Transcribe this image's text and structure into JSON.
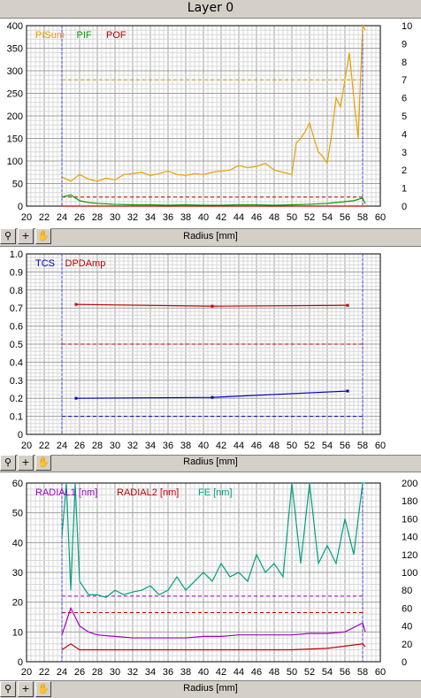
{
  "title": "Layer 0",
  "toolbar_icons": [
    "zoom-icon",
    "crosshair-icon",
    "pan-hand-icon"
  ],
  "chart_data": [
    {
      "type": "line",
      "xlabel": "Radius [mm]",
      "xlim": [
        20,
        60
      ],
      "xticks": [
        "20",
        "22",
        "24",
        "26",
        "28",
        "30",
        "32",
        "34",
        "36",
        "38",
        "40",
        "42",
        "44",
        "46",
        "48",
        "50",
        "52",
        "54",
        "56",
        "58",
        "60"
      ],
      "ylim_left": [
        0,
        400
      ],
      "yticks_left": [
        "0",
        "50",
        "100",
        "150",
        "200",
        "250",
        "300",
        "350",
        "400"
      ],
      "ylim_right": [
        0,
        10
      ],
      "yticks_right": [
        "0",
        "1",
        "2",
        "3",
        "4",
        "5",
        "6",
        "7",
        "8",
        "9",
        "10"
      ],
      "legend": [
        {
          "name": "PISum",
          "color": "#e8a000"
        },
        {
          "name": "PIF",
          "color": "#00a000"
        },
        {
          "name": "POF",
          "color": "#c00000"
        }
      ],
      "markers_x": [
        24,
        58
      ],
      "thresholds": [
        {
          "y": 280,
          "color": "#d0a000"
        },
        {
          "y": 20,
          "color": "#c00000"
        }
      ],
      "series": [
        {
          "name": "PISum",
          "axis": "left",
          "color": "#e8a000",
          "x": [
            24,
            25,
            26,
            27,
            28,
            29,
            30,
            31,
            32,
            33,
            34,
            35,
            36,
            37,
            38,
            39,
            40,
            41,
            42,
            43,
            44,
            45,
            46,
            47,
            48,
            49,
            50,
            50.5,
            51,
            51.5,
            52,
            52.5,
            53,
            53.5,
            54,
            54.5,
            55,
            55.5,
            56,
            56.5,
            57,
            57.5,
            58,
            58.3
          ],
          "y": [
            65,
            55,
            70,
            60,
            55,
            62,
            58,
            70,
            72,
            75,
            68,
            72,
            78,
            70,
            68,
            72,
            70,
            75,
            78,
            80,
            90,
            85,
            88,
            95,
            80,
            75,
            70,
            140,
            150,
            165,
            185,
            150,
            120,
            110,
            95,
            160,
            240,
            220,
            280,
            340,
            240,
            150,
            400,
            390
          ]
        },
        {
          "name": "PIF",
          "axis": "left",
          "color": "#00a000",
          "x": [
            24,
            25,
            26,
            27,
            28,
            30,
            32,
            34,
            36,
            38,
            40,
            42,
            44,
            46,
            48,
            50,
            52,
            54,
            56,
            57,
            58,
            58.3
          ],
          "y": [
            20,
            25,
            12,
            8,
            6,
            4,
            3,
            3,
            2,
            3,
            2,
            2,
            3,
            3,
            2,
            3,
            4,
            6,
            10,
            12,
            18,
            5
          ]
        },
        {
          "name": "POF",
          "axis": "left",
          "color": "#c00000",
          "x": [
            24,
            30,
            40,
            50,
            58.3
          ],
          "y": [
            0,
            0,
            0,
            0,
            0
          ]
        }
      ]
    },
    {
      "type": "line",
      "xlabel": "Radius [mm]",
      "xlim": [
        20,
        60
      ],
      "xticks": [
        "20",
        "22",
        "24",
        "26",
        "28",
        "30",
        "32",
        "34",
        "36",
        "38",
        "40",
        "42",
        "44",
        "46",
        "48",
        "50",
        "52",
        "54",
        "56",
        "58",
        "60"
      ],
      "ylim_left": [
        0,
        1
      ],
      "yticks_left": [
        "0",
        "0.1",
        "0.2",
        "0.3",
        "0.4",
        "0.5",
        "0.6",
        "0.7",
        "0.8",
        "0.9",
        "1.0"
      ],
      "legend": [
        {
          "name": "TCS",
          "color": "#0000c0"
        },
        {
          "name": "DPDAmp",
          "color": "#c00000"
        }
      ],
      "markers_x": [
        24,
        58
      ],
      "thresholds": [
        {
          "y": 0.5,
          "color": "#c00000"
        },
        {
          "y": 0.1,
          "color": "#0000c0"
        }
      ],
      "series": [
        {
          "name": "TCS",
          "axis": "left",
          "color": "#0000c0",
          "x": [
            25.6,
            41,
            56.3
          ],
          "y": [
            0.2,
            0.205,
            0.24
          ]
        },
        {
          "name": "DPDAmp",
          "axis": "left",
          "color": "#c00000",
          "x": [
            25.6,
            41,
            56.3
          ],
          "y": [
            0.72,
            0.71,
            0.715
          ]
        }
      ]
    },
    {
      "type": "line",
      "xlabel": "Radius [mm]",
      "xlim": [
        20,
        60
      ],
      "xticks": [
        "20",
        "22",
        "24",
        "26",
        "28",
        "30",
        "32",
        "34",
        "36",
        "38",
        "40",
        "42",
        "44",
        "46",
        "48",
        "50",
        "52",
        "54",
        "56",
        "58",
        "60"
      ],
      "ylim_left": [
        0,
        60
      ],
      "yticks_left": [
        "0",
        "10",
        "20",
        "30",
        "40",
        "50",
        "60"
      ],
      "ylim_right": [
        0,
        200
      ],
      "yticks_right": [
        "0",
        "20",
        "40",
        "60",
        "80",
        "100",
        "120",
        "140",
        "160",
        "180",
        "200"
      ],
      "legend": [
        {
          "name": "RADIAL1 [nm]",
          "color": "#a000c0"
        },
        {
          "name": "RADIAL2 [nm]",
          "color": "#c00000"
        },
        {
          "name": "FE [nm]",
          "color": "#00a080"
        }
      ],
      "markers_x": [
        24,
        58
      ],
      "thresholds": [
        {
          "y": 22,
          "color": "#a000c0"
        },
        {
          "y": 16.5,
          "color": "#c00000"
        }
      ],
      "series": [
        {
          "name": "FE [nm]",
          "axis": "right",
          "color": "#00a080",
          "x": [
            24,
            24.5,
            25,
            25.5,
            26,
            27,
            28,
            29,
            30,
            31,
            32,
            33,
            34,
            35,
            36,
            37,
            38,
            39,
            40,
            41,
            42,
            43,
            44,
            45,
            46,
            47,
            48,
            49,
            50,
            51,
            52,
            53,
            54,
            55,
            56,
            57,
            58,
            58.3
          ],
          "y": [
            140,
            200,
            80,
            200,
            90,
            75,
            75,
            72,
            80,
            75,
            78,
            80,
            85,
            75,
            80,
            95,
            80,
            90,
            100,
            90,
            110,
            95,
            100,
            90,
            120,
            100,
            110,
            95,
            200,
            110,
            200,
            110,
            130,
            110,
            160,
            120,
            200,
            200
          ]
        },
        {
          "name": "RADIAL1 [nm]",
          "axis": "left",
          "color": "#a000c0",
          "x": [
            24,
            25,
            26,
            27,
            28,
            30,
            32,
            34,
            36,
            38,
            40,
            42,
            44,
            46,
            48,
            50,
            52,
            54,
            56,
            58,
            58.3
          ],
          "y": [
            9,
            18,
            12,
            10,
            9,
            8.5,
            8,
            8,
            8,
            8,
            8.5,
            8.5,
            9,
            9,
            9,
            9,
            9.5,
            9.5,
            10,
            13,
            10
          ]
        },
        {
          "name": "RADIAL2 [nm]",
          "axis": "left",
          "color": "#c00000",
          "x": [
            24,
            25,
            26,
            28,
            30,
            34,
            38,
            42,
            46,
            50,
            54,
            58,
            58.3
          ],
          "y": [
            4,
            6,
            4,
            4,
            4,
            4,
            4,
            4,
            4,
            4,
            4.5,
            6,
            5
          ]
        }
      ]
    }
  ]
}
